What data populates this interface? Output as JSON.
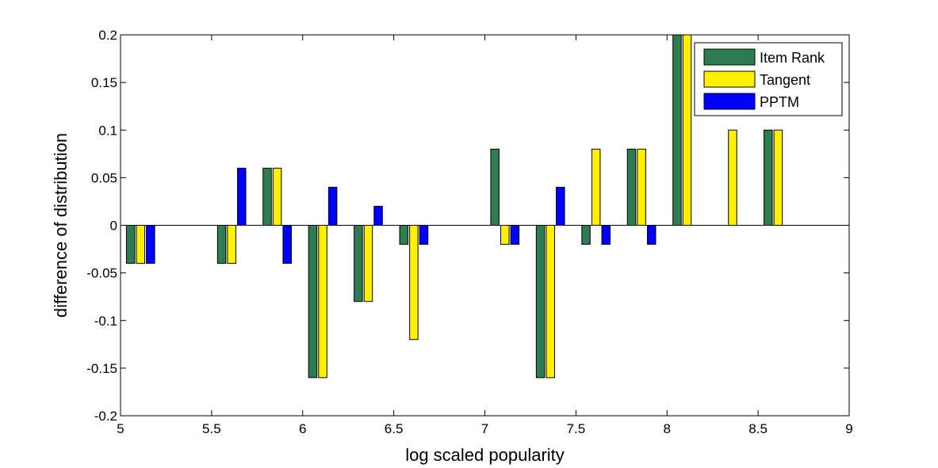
{
  "chart_data": {
    "type": "bar",
    "title": "",
    "xlabel": "log scaled popularity",
    "ylabel": "difference of distribution",
    "xlim": [
      5,
      9
    ],
    "ylim": [
      -0.2,
      0.2
    ],
    "xticks": [
      5,
      5.5,
      6,
      6.5,
      7,
      7.5,
      8,
      8.5,
      9
    ],
    "yticks": [
      0.2,
      0.15,
      0.1,
      0.05,
      0,
      -0.05,
      -0.1,
      -0.15,
      -0.2
    ],
    "xtick_labels": [
      "5",
      "5.5",
      "6",
      "6.5",
      "7",
      "7.5",
      "8",
      "8.5",
      "9"
    ],
    "ytick_labels": [
      "0.2",
      "0.15",
      "0.1",
      "0.05",
      "0",
      "-0.05",
      "-0.1",
      "-0.15",
      "-0.2"
    ],
    "grid": false,
    "legend_position": "top-right",
    "categories": [
      5.11,
      5.61,
      5.86,
      6.11,
      6.36,
      6.61,
      7.11,
      7.36,
      7.61,
      7.86,
      8.11,
      8.36,
      8.61
    ],
    "series": [
      {
        "name": "Item Rank",
        "color": "#2e7d52",
        "values": [
          -0.04,
          -0.04,
          0.06,
          -0.16,
          -0.08,
          -0.02,
          0.08,
          -0.16,
          -0.02,
          0.08,
          0.2,
          0,
          0.1
        ]
      },
      {
        "name": "Tangent",
        "color": "#ffef00",
        "values": [
          -0.04,
          -0.04,
          0.06,
          -0.16,
          -0.08,
          -0.12,
          -0.02,
          -0.16,
          0.08,
          0.08,
          0.2,
          0.1,
          0.1
        ]
      },
      {
        "name": "PPTM",
        "color": "#0000ff",
        "values": [
          -0.04,
          0.06,
          -0.04,
          0.04,
          0.02,
          -0.02,
          -0.02,
          0.04,
          -0.02,
          -0.02,
          0,
          0,
          0
        ]
      }
    ]
  }
}
